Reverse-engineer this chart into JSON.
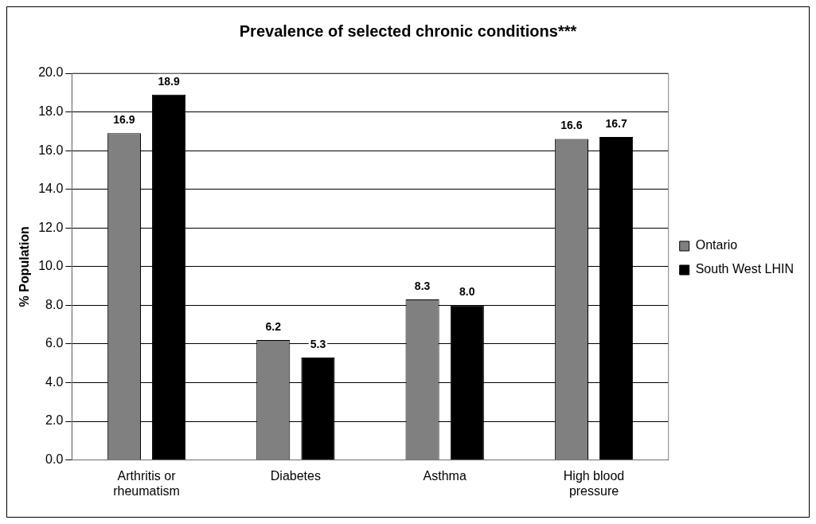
{
  "chart_data": {
    "type": "bar",
    "title": "Prevalence of selected chronic conditions***",
    "ylabel": "% Population",
    "categories": [
      "Arthritis or rheumatism",
      "Diabetes",
      "Asthma",
      "High blood pressure"
    ],
    "series": [
      {
        "name": "Ontario",
        "color": "#808080",
        "values": [
          16.9,
          6.2,
          8.3,
          16.6
        ],
        "value_labels": [
          "16.9",
          "6.2",
          "8.3",
          "16.6"
        ]
      },
      {
        "name": "South West LHIN",
        "color": "#000000",
        "values": [
          18.9,
          5.3,
          8.0,
          16.7
        ],
        "value_labels": [
          "18.9",
          "5.3",
          "8.0",
          "16.7"
        ]
      }
    ],
    "ylim": [
      0,
      20
    ],
    "yticks": [
      {
        "value": 0,
        "label": "0.0"
      },
      {
        "value": 2,
        "label": "2.0"
      },
      {
        "value": 4,
        "label": "4.0"
      },
      {
        "value": 6,
        "label": "6.0"
      },
      {
        "value": 8,
        "label": "8.0"
      },
      {
        "value": 10,
        "label": "10.0"
      },
      {
        "value": 12,
        "label": "12.0"
      },
      {
        "value": 14,
        "label": "14.0"
      },
      {
        "value": 16,
        "label": "16.0"
      },
      {
        "value": 18,
        "label": "18.0"
      },
      {
        "value": 20,
        "label": "20.0"
      }
    ],
    "grid": "y",
    "legend": "right"
  }
}
